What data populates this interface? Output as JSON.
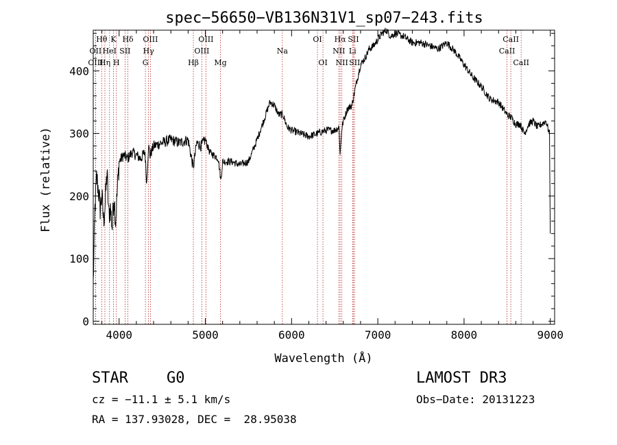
{
  "chart_data": {
    "type": "line",
    "title": "spec−56650−VB136N31V1_sp07−243.fits",
    "xlabel": "Wavelength (Å)",
    "ylabel": "Flux (relative)",
    "xlim": [
      3700,
      9050
    ],
    "ylim": [
      -5,
      465
    ],
    "xticks": [
      4000,
      5000,
      6000,
      7000,
      8000,
      9000
    ],
    "yticks": [
      0,
      100,
      200,
      300,
      400
    ],
    "series": [
      {
        "name": "flux",
        "x": [
          3700,
          3720,
          3740,
          3760,
          3780,
          3800,
          3820,
          3840,
          3860,
          3880,
          3900,
          3920,
          3940,
          3960,
          3980,
          4000,
          4050,
          4100,
          4150,
          4200,
          4250,
          4300,
          4320,
          4340,
          4360,
          4400,
          4500,
          4600,
          4700,
          4800,
          4860,
          4900,
          4950,
          5000,
          5050,
          5100,
          5150,
          5180,
          5200,
          5300,
          5400,
          5500,
          5600,
          5700,
          5750,
          5800,
          5850,
          5900,
          5950,
          6000,
          6100,
          6200,
          6300,
          6400,
          6500,
          6550,
          6563,
          6580,
          6600,
          6650,
          6700,
          6750,
          6800,
          6850,
          6900,
          6950,
          7000,
          7050,
          7100,
          7150,
          7200,
          7300,
          7400,
          7500,
          7600,
          7700,
          7800,
          7900,
          8000,
          8100,
          8200,
          8300,
          8400,
          8500,
          8550,
          8600,
          8650,
          8700,
          8750,
          8800,
          8850,
          8900,
          8950,
          8990,
          9000
        ],
        "y": [
          60,
          180,
          230,
          210,
          180,
          200,
          160,
          190,
          240,
          170,
          180,
          150,
          200,
          160,
          210,
          255,
          265,
          260,
          270,
          265,
          260,
          270,
          220,
          280,
          265,
          280,
          285,
          290,
          285,
          290,
          245,
          285,
          280,
          290,
          270,
          265,
          260,
          225,
          255,
          255,
          250,
          255,
          290,
          330,
          350,
          345,
          330,
          330,
          310,
          305,
          300,
          295,
          300,
          305,
          305,
          310,
          265,
          305,
          320,
          340,
          345,
          380,
          410,
          420,
          435,
          440,
          450,
          460,
          465,
          455,
          460,
          455,
          445,
          445,
          440,
          435,
          445,
          430,
          410,
          390,
          375,
          355,
          350,
          330,
          325,
          315,
          315,
          300,
          315,
          320,
          310,
          315,
          320,
          300,
          140
        ]
      }
    ],
    "line_markers": [
      {
        "label": "Hθ",
        "x": 3798,
        "row": 1
      },
      {
        "label": "OII",
        "x": 3727,
        "row": 2
      },
      {
        "label": "OIII",
        "x": 3727,
        "row": 3
      },
      {
        "label": "K",
        "x": 3934,
        "row": 1
      },
      {
        "label": "HeI",
        "x": 3889,
        "row": 2
      },
      {
        "label": "Hη",
        "x": 3835,
        "row": 3
      },
      {
        "label": "SII",
        "x": 4069,
        "row": 2
      },
      {
        "label": "H",
        "x": 3969,
        "row": 3
      },
      {
        "label": "Hδ",
        "x": 4102,
        "row": 1
      },
      {
        "label": "OIII",
        "x": 4363,
        "row": 1
      },
      {
        "label": "Hγ",
        "x": 4341,
        "row": 2
      },
      {
        "label": "G",
        "x": 4305,
        "row": 3
      },
      {
        "label": "Hβ",
        "x": 4861,
        "row": 3
      },
      {
        "label": "OIII",
        "x": 5007,
        "row": 1
      },
      {
        "label": "OIII",
        "x": 4959,
        "row": 2
      },
      {
        "label": "Mg",
        "x": 5175,
        "row": 3
      },
      {
        "label": "Na",
        "x": 5893,
        "row": 2
      },
      {
        "label": "OI",
        "x": 6300,
        "row": 1
      },
      {
        "label": "OI",
        "x": 6364,
        "row": 3
      },
      {
        "label": "Hα",
        "x": 6563,
        "row": 1
      },
      {
        "label": "NII",
        "x": 6548,
        "row": 2
      },
      {
        "label": "NII",
        "x": 6583,
        "row": 3
      },
      {
        "label": "SII",
        "x": 6717,
        "row": 1
      },
      {
        "label": "Li",
        "x": 6707,
        "row": 2
      },
      {
        "label": "SII",
        "x": 6731,
        "row": 3
      },
      {
        "label": "CaII",
        "x": 8542,
        "row": 1
      },
      {
        "label": "CaII",
        "x": 8498,
        "row": 2
      },
      {
        "label": "CaII",
        "x": 8662,
        "row": 3
      }
    ]
  },
  "info": {
    "class": "STAR",
    "subclass": "G0",
    "survey": "LAMOST DR3",
    "cz": "cz = −11.1 ± 5.1 km/s",
    "obs_date": "Obs−Date: 20131223",
    "radec": "RA = 137.93028, DEC =  28.95038"
  }
}
